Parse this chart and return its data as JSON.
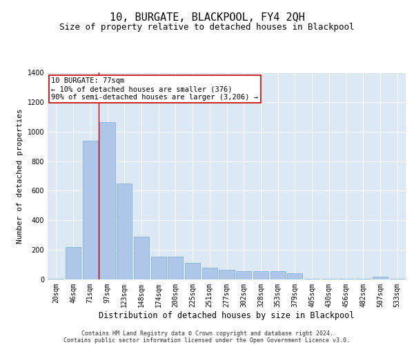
{
  "title": "10, BURGATE, BLACKPOOL, FY4 2QH",
  "subtitle": "Size of property relative to detached houses in Blackpool",
  "xlabel": "Distribution of detached houses by size in Blackpool",
  "ylabel": "Number of detached properties",
  "categories": [
    "20sqm",
    "46sqm",
    "71sqm",
    "97sqm",
    "123sqm",
    "148sqm",
    "174sqm",
    "200sqm",
    "225sqm",
    "251sqm",
    "277sqm",
    "302sqm",
    "328sqm",
    "353sqm",
    "379sqm",
    "405sqm",
    "430sqm",
    "456sqm",
    "482sqm",
    "507sqm",
    "533sqm"
  ],
  "values": [
    5,
    220,
    940,
    1065,
    650,
    290,
    155,
    155,
    110,
    80,
    65,
    55,
    55,
    55,
    40,
    5,
    5,
    5,
    5,
    20,
    5
  ],
  "bar_color": "#aec6e8",
  "bar_edgecolor": "#7aadd4",
  "vline_color": "#cc0000",
  "vline_pos": 2.5,
  "annotation_text": "10 BURGATE: 77sqm\n← 10% of detached houses are smaller (376)\n90% of semi-detached houses are larger (3,206) →",
  "annotation_box_facecolor": "#ffffff",
  "annotation_box_edgecolor": "#cc0000",
  "ylim": [
    0,
    1400
  ],
  "yticks": [
    0,
    200,
    400,
    600,
    800,
    1000,
    1200,
    1400
  ],
  "plot_bg_color": "#dce9f5",
  "fig_bg_color": "#ffffff",
  "footer_line1": "Contains HM Land Registry data © Crown copyright and database right 2024.",
  "footer_line2": "Contains public sector information licensed under the Open Government Licence v3.0.",
  "title_fontsize": 11,
  "subtitle_fontsize": 9,
  "xlabel_fontsize": 8.5,
  "ylabel_fontsize": 8,
  "tick_fontsize": 7,
  "annot_fontsize": 7.5,
  "footer_fontsize": 6
}
